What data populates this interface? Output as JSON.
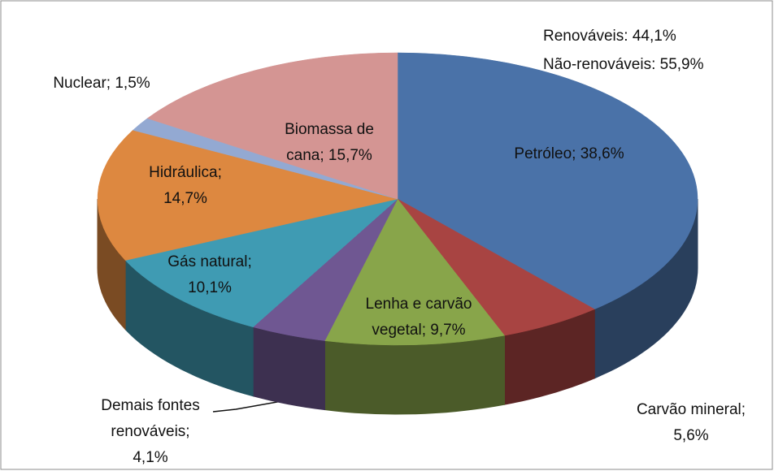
{
  "chart_data": {
    "type": "pie",
    "three_d": true,
    "values": [
      38.6,
      5.6,
      9.7,
      4.1,
      10.1,
      14.7,
      1.5,
      15.7
    ],
    "value_labels": [
      [
        "Petróleo; 38,6%"
      ],
      [
        "Carvão mineral;",
        "5,6%"
      ],
      [
        "Lenha e carvão",
        "vegetal; 9,7%"
      ],
      [
        "Demais fontes",
        "renováveis;",
        "4,1%"
      ],
      [
        "Gás natural;",
        "10,1%"
      ],
      [
        "Hidráulica;",
        "14,7%"
      ],
      [
        "Nuclear; 1,5%"
      ],
      [
        "Biomassa de",
        "cana; 15,7%"
      ]
    ],
    "colors": [
      "#4a72a8",
      "#a84442",
      "#88a54a",
      "#6f5792",
      "#3f9bb3",
      "#dd8840",
      "#93a9d2",
      "#d49593"
    ],
    "annotations": [
      "Renováveis: 44,1%",
      "Não-renováveis: 55,9%"
    ]
  }
}
